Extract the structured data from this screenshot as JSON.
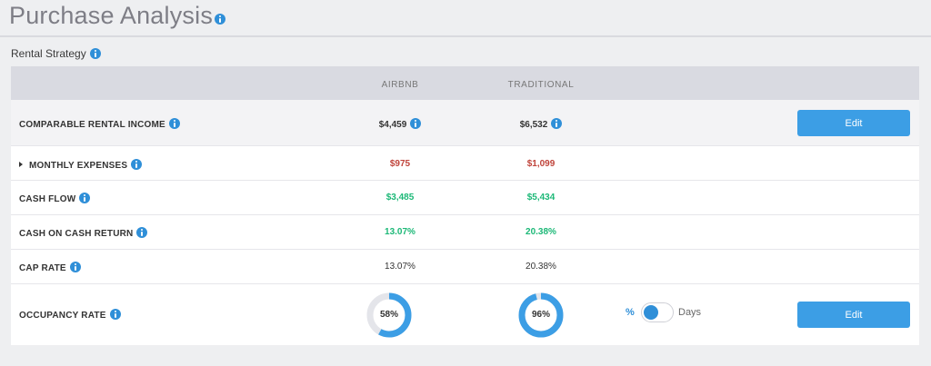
{
  "header": {
    "title": "Purchase Analysis",
    "section_label": "Rental Strategy"
  },
  "table": {
    "columns": [
      "AIRBNB",
      "TRADITIONAL"
    ],
    "rows": [
      {
        "label": "COMPARABLE RENTAL INCOME",
        "airbnb": "$4,459",
        "traditional": "$6,532",
        "action": "Edit"
      },
      {
        "label": "MONTHLY EXPENSES",
        "airbnb": "$975",
        "traditional": "$1,099"
      },
      {
        "label": "CASH FLOW",
        "airbnb": "$3,485",
        "traditional": "$5,434"
      },
      {
        "label": "CASH ON CASH RETURN",
        "airbnb": "13.07%",
        "traditional": "20.38%"
      },
      {
        "label": "CAP RATE",
        "airbnb": "13.07%",
        "traditional": "20.38%"
      },
      {
        "label": "OCCUPANCY RATE",
        "airbnb": "58%",
        "traditional": "96%",
        "action": "Edit"
      }
    ]
  },
  "occupancy": {
    "airbnb_fraction": 0.58,
    "traditional_fraction": 0.96,
    "toggle": {
      "left_label": "%",
      "right_label": "Days",
      "selected": "%"
    }
  },
  "colors": {
    "accent": "#3c9ee5",
    "negative": "#c0443b",
    "positive": "#1cb877",
    "donut_track": "#e4e5ea"
  },
  "icons": {
    "info": "info-icon",
    "expand": "caret-right-icon"
  }
}
